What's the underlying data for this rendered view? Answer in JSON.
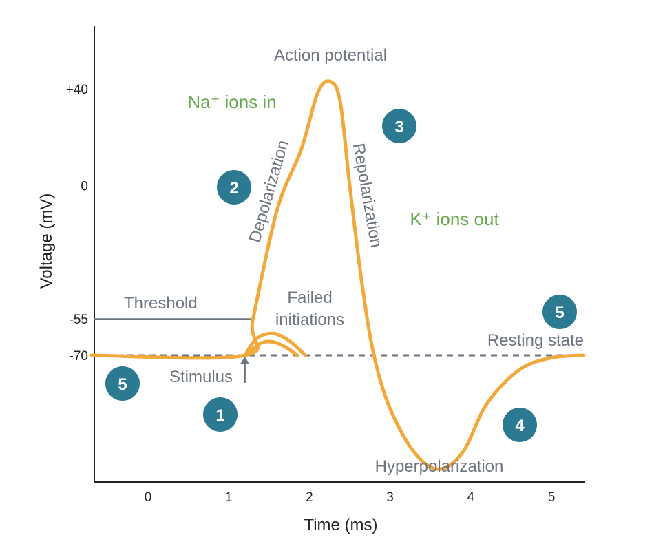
{
  "colors": {
    "curve": "#f2a93b",
    "axis": "#222222",
    "gray_label": "#6d7580",
    "green_label": "#6aa84f",
    "badge": "#2c7a91",
    "dashed": "#6d7580"
  },
  "chart_data": {
    "type": "line",
    "xlabel": "Time (ms)",
    "ylabel": "Voltage (mV)",
    "xlim": [
      -0.7,
      5.4
    ],
    "x_ticks": [
      "0",
      "1",
      "2",
      "3",
      "4",
      "5"
    ],
    "y_ticks": [
      "+40",
      "0",
      "-55",
      "-70"
    ],
    "grid": false,
    "series": [
      {
        "values": [
          {
            "x": -0.7,
            "y": -70
          },
          {
            "x": 1.2,
            "y": -70
          },
          {
            "x": 1.3,
            "y": -55
          },
          {
            "x": 1.6,
            "y": -10
          },
          {
            "x": 1.9,
            "y": 15
          },
          {
            "x": 2.1,
            "y": 38
          },
          {
            "x": 2.25,
            "y": 43
          },
          {
            "x": 2.38,
            "y": 35
          },
          {
            "x": 2.5,
            "y": 0
          },
          {
            "x": 2.65,
            "y": -40
          },
          {
            "x": 2.8,
            "y": -70
          },
          {
            "x": 3.0,
            "y": -92
          },
          {
            "x": 3.3,
            "y": -110
          },
          {
            "x": 3.6,
            "y": -117
          },
          {
            "x": 3.9,
            "y": -110
          },
          {
            "x": 4.2,
            "y": -90
          },
          {
            "x": 4.6,
            "y": -76
          },
          {
            "x": 5.0,
            "y": -71
          },
          {
            "x": 5.4,
            "y": -70
          }
        ]
      },
      {
        "values": [
          {
            "x": 1.2,
            "y": -70
          },
          {
            "x": 1.35,
            "y": -63
          },
          {
            "x": 1.55,
            "y": -61
          },
          {
            "x": 1.75,
            "y": -64
          },
          {
            "x": 1.95,
            "y": -70
          }
        ]
      },
      {
        "values": [
          {
            "x": 1.2,
            "y": -70
          },
          {
            "x": 1.4,
            "y": -65
          },
          {
            "x": 1.55,
            "y": -64.5
          },
          {
            "x": 1.7,
            "y": -66.5
          },
          {
            "x": 1.85,
            "y": -70
          }
        ]
      }
    ],
    "reference_lines": [
      {
        "label": "Resting state",
        "y": -70,
        "style": "dashed"
      },
      {
        "label": "Threshold",
        "y": -55,
        "style": "solid"
      }
    ],
    "annotations": {
      "action_potential": "Action potential",
      "na_ions": "Na⁺ ions in",
      "k_ions": "K⁺ ions out",
      "depolarization": "Depolarization",
      "repolarization": "Repolarization",
      "failed": [
        "Failed",
        "initiations"
      ],
      "hyperpolarization": "Hyperpolarization",
      "stimulus": "Stimulus",
      "stimulus_x": 1.2
    },
    "badges": [
      "1",
      "2",
      "3",
      "4",
      "5",
      "5"
    ]
  }
}
